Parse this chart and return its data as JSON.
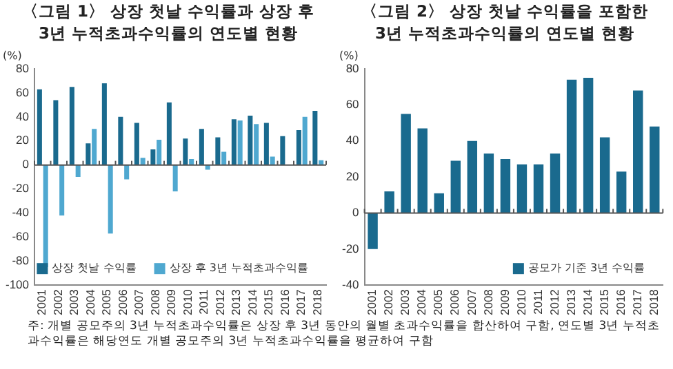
{
  "chart_data": [
    {
      "type": "bar",
      "title": "〈그림 1〉 상장 첫날 수익률과 상장 후\n3년 누적초과수익률의 연도별 현황",
      "ylabel": "(%)",
      "categories": [
        "2001",
        "2002",
        "2003",
        "2004",
        "2005",
        "2006",
        "2007",
        "2008",
        "2009",
        "2010",
        "2011",
        "2012",
        "2013",
        "2014",
        "2015",
        "2016",
        "2017",
        "2018"
      ],
      "series": [
        {
          "name": "상장 첫날 수익률",
          "color": "#1a6a8e",
          "values": [
            63,
            54,
            65,
            18,
            68,
            40,
            35,
            13,
            52,
            22,
            30,
            23,
            38,
            41,
            35,
            24,
            29,
            45
          ]
        },
        {
          "name": "상장 후 3년 누적초과수익률",
          "color": "#4fa8d0",
          "values": [
            -85,
            -42,
            -10,
            30,
            -57,
            -12,
            6,
            21,
            -22,
            5,
            -4,
            11,
            37,
            34,
            7,
            0,
            40,
            4
          ]
        }
      ],
      "ylim": [
        -100,
        80
      ],
      "yticks": [
        -100,
        -80,
        -60,
        -40,
        -20,
        0,
        20,
        40,
        60,
        80
      ],
      "grid": false,
      "legend": "bottom",
      "ref_lines": [
        {
          "axis": "y",
          "value": 0,
          "color": "#555555"
        }
      ],
      "annotations": [
        "주: 개별 공모주의 3년 누적초과수익률은 상장 후 3년 동안의 월별 초과수익률을 합산하여 구함, 연도별 3년 누적초과수익률은 해당연도 개별 공모주의 3년 누적초과수익률을 평균하여 구함"
      ]
    },
    {
      "type": "bar",
      "title": "〈그림 2〉 상장 첫날 수익률을 포함한\n3년 누적초과수익률의 연도별 현황",
      "ylabel": "(%)",
      "categories": [
        "2001",
        "2002",
        "2003",
        "2004",
        "2005",
        "2006",
        "2007",
        "2008",
        "2009",
        "2010",
        "2011",
        "2012",
        "2013",
        "2014",
        "2015",
        "2016",
        "2017",
        "2018"
      ],
      "series": [
        {
          "name": "공모가 기준 3년 수익률",
          "color": "#1a6a8e",
          "values": [
            -20,
            12,
            55,
            47,
            11,
            29,
            40,
            33,
            30,
            27,
            27,
            33,
            74,
            75,
            42,
            23,
            68,
            48
          ]
        }
      ],
      "ylim": [
        -40,
        80
      ],
      "yticks": [
        -40,
        -20,
        0,
        20,
        40,
        60,
        80
      ],
      "grid": false,
      "legend": "bottom",
      "ref_lines": [
        {
          "axis": "y",
          "value": 0,
          "color": "#555555"
        }
      ]
    }
  ]
}
